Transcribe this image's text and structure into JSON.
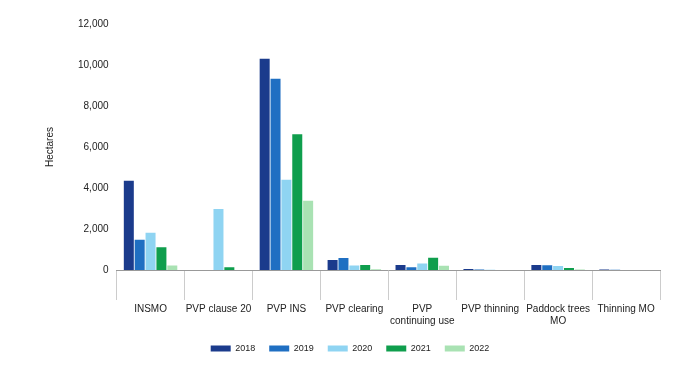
{
  "chart_data": {
    "type": "bar",
    "y_label": "Hectares",
    "categories": [
      "INSMO",
      "PVP clause 20",
      "PVP INS",
      "PVP clearing",
      [
        "PVP",
        "continuing use"
      ],
      "PVP thinning",
      [
        "Paddock trees",
        "MO"
      ],
      "Thinning MO"
    ],
    "series": [
      {
        "name": "2018",
        "color": "#1b3b8c",
        "values": [
          4350,
          0,
          10310,
          490,
          250,
          50,
          250,
          20
        ]
      },
      {
        "name": "2019",
        "color": "#1f6fc2",
        "values": [
          1470,
          0,
          9330,
          580,
          130,
          30,
          230,
          10
        ]
      },
      {
        "name": "2020",
        "color": "#8fd4f2",
        "values": [
          1820,
          2980,
          4400,
          220,
          320,
          10,
          200,
          0
        ]
      },
      {
        "name": "2021",
        "color": "#0f9e4d",
        "values": [
          1110,
          130,
          6620,
          240,
          600,
          0,
          100,
          0
        ]
      },
      {
        "name": "2022",
        "color": "#a9e2b3",
        "values": [
          220,
          0,
          3380,
          40,
          210,
          0,
          20,
          0
        ]
      }
    ],
    "ylim": [
      0,
      12000
    ],
    "yticks": [
      0,
      {
        "value": 2000,
        "label": "2,000"
      },
      {
        "value": 4000,
        "label": "4,000"
      },
      {
        "value": 6000,
        "label": "6,000"
      },
      {
        "value": 8000,
        "label": "8,000"
      },
      {
        "value": 10000,
        "label": "10,000"
      },
      {
        "value": 12000,
        "label": "12,000"
      }
    ],
    "grid": false,
    "legend": "bottom"
  }
}
